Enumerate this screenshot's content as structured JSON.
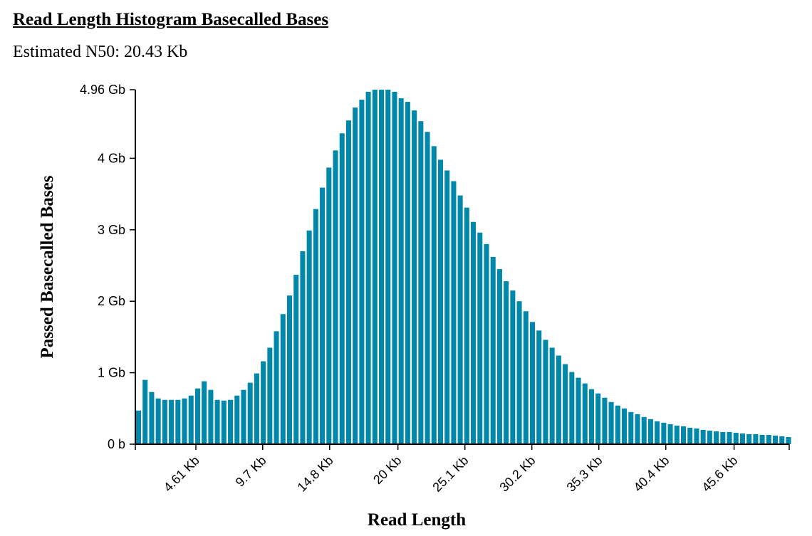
{
  "header": {
    "title": "Read Length Histogram Basecalled Bases",
    "subtitle": "Estimated N50: 20.43 Kb"
  },
  "colors": {
    "bar": "#0088aa",
    "axis": "#000000"
  },
  "chart_data": {
    "type": "bar",
    "title": "Read Length Histogram Basecalled Bases",
    "xlabel": "Read Length",
    "ylabel": "Passed Basecalled Bases",
    "xlim": [
      0,
      49800
    ],
    "ylim": [
      0,
      4.96
    ],
    "y_unit": "Gb",
    "bin_width": 500,
    "y_ticks": [
      {
        "value": 0,
        "label": "0 b"
      },
      {
        "value": 1,
        "label": "1 Gb"
      },
      {
        "value": 2,
        "label": "2 Gb"
      },
      {
        "value": 3,
        "label": "3 Gb"
      },
      {
        "value": 4,
        "label": "4 Gb"
      },
      {
        "value": 4.96,
        "label": "4.96 Gb"
      }
    ],
    "x_ticks": [
      {
        "value": 4610,
        "label": "4.61 Kb"
      },
      {
        "value": 9700,
        "label": "9.7 Kb"
      },
      {
        "value": 14800,
        "label": "14.8 Kb"
      },
      {
        "value": 20000,
        "label": "20 Kb"
      },
      {
        "value": 25100,
        "label": "25.1 Kb"
      },
      {
        "value": 30200,
        "label": "30.2 Kb"
      },
      {
        "value": 35300,
        "label": "35.3 Kb"
      },
      {
        "value": 40400,
        "label": "40.4 Kb"
      },
      {
        "value": 45600,
        "label": "45.6 Kb"
      }
    ],
    "values": [
      0.47,
      0.9,
      0.73,
      0.64,
      0.62,
      0.62,
      0.62,
      0.64,
      0.68,
      0.78,
      0.88,
      0.76,
      0.62,
      0.61,
      0.62,
      0.68,
      0.76,
      0.86,
      0.99,
      1.16,
      1.35,
      1.58,
      1.82,
      2.08,
      2.37,
      2.7,
      2.99,
      3.29,
      3.59,
      3.87,
      4.11,
      4.35,
      4.53,
      4.71,
      4.82,
      4.93,
      4.96,
      4.96,
      4.96,
      4.93,
      4.84,
      4.79,
      4.67,
      4.52,
      4.37,
      4.17,
      3.98,
      3.83,
      3.68,
      3.48,
      3.31,
      3.11,
      2.96,
      2.8,
      2.62,
      2.45,
      2.28,
      2.15,
      2.0,
      1.86,
      1.71,
      1.59,
      1.46,
      1.35,
      1.24,
      1.12,
      1.01,
      0.93,
      0.85,
      0.77,
      0.71,
      0.65,
      0.59,
      0.54,
      0.5,
      0.45,
      0.42,
      0.38,
      0.35,
      0.32,
      0.3,
      0.28,
      0.26,
      0.25,
      0.23,
      0.22,
      0.2,
      0.19,
      0.18,
      0.17,
      0.17,
      0.16,
      0.15,
      0.14,
      0.14,
      0.13,
      0.13,
      0.12,
      0.11,
      0.1
    ]
  }
}
